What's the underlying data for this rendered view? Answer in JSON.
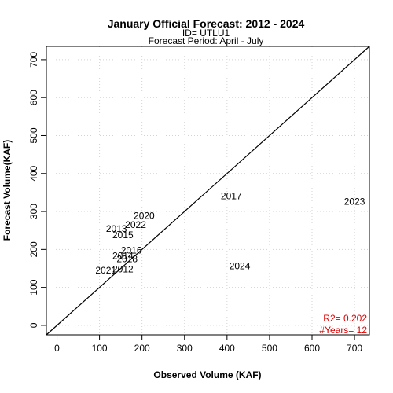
{
  "chart_data": {
    "type": "scatter",
    "title": "January Official Forecast: 2012 - 2024",
    "subtitle_lines": [
      "ID= UTLU1",
      "Forecast Period:  April - July"
    ],
    "xlabel": "Observed Volume (KAF)",
    "ylabel": "Forecast Volume(KAF)",
    "xlim": [
      -25,
      735
    ],
    "ylim": [
      -25,
      735
    ],
    "x_ticks": [
      0,
      100,
      200,
      300,
      400,
      500,
      600,
      700
    ],
    "y_ticks": [
      0,
      100,
      200,
      300,
      400,
      500,
      600,
      700
    ],
    "grid": true,
    "reference_line": "1:1",
    "points": [
      {
        "label": "2012",
        "x": 155,
        "y": 148
      },
      {
        "label": "2013",
        "x": 140,
        "y": 255
      },
      {
        "label": "2014",
        "x": 155,
        "y": 183
      },
      {
        "label": "2015",
        "x": 155,
        "y": 238
      },
      {
        "label": "2016",
        "x": 175,
        "y": 198
      },
      {
        "label": "2017",
        "x": 410,
        "y": 340
      },
      {
        "label": "2018",
        "x": 165,
        "y": 175
      },
      {
        "label": "2020",
        "x": 205,
        "y": 289
      },
      {
        "label": "2021",
        "x": 115,
        "y": 145
      },
      {
        "label": "2022",
        "x": 185,
        "y": 265
      },
      {
        "label": "2023",
        "x": 700,
        "y": 326
      },
      {
        "label": "2024",
        "x": 430,
        "y": 156
      }
    ],
    "stats": {
      "r2_text": "R2=  0.202",
      "years_text": "#Years=  12",
      "color": "#dd0000"
    }
  }
}
